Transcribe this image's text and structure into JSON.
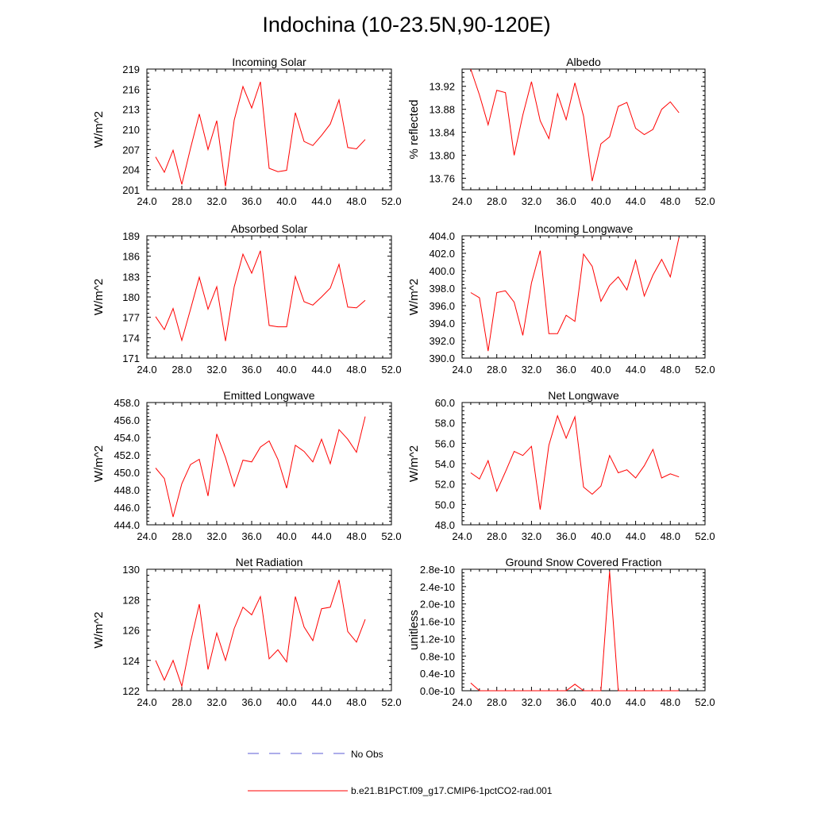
{
  "figure": {
    "title": "Indochina (10-23.5N,90-120E)",
    "legend": [
      {
        "label": "No Obs",
        "color": "#5b5bd6",
        "style": "dashed"
      },
      {
        "label": "b.e21.B1PCT.f09_g17.CMIP6-1pctCO2-rad.001",
        "color": "#ff0000",
        "style": "solid"
      }
    ]
  },
  "chart_data": [
    {
      "type": "line",
      "title": "Incoming Solar",
      "ylabel": "W/m^2",
      "xlim": [
        24,
        52
      ],
      "ylim": [
        201,
        219
      ],
      "xticks": [
        24,
        28,
        32,
        36,
        40,
        44,
        48,
        52
      ],
      "xtick_labels": [
        "24.0",
        "28.0",
        "32.0",
        "36.0",
        "40.0",
        "44.0",
        "48.0",
        "52.0"
      ],
      "yticks": [
        201,
        204,
        207,
        210,
        213,
        216,
        219
      ],
      "ytick_labels": [
        "201",
        "204",
        "207",
        "210",
        "213",
        "216",
        "219"
      ],
      "color": "#ff0000",
      "x": [
        25,
        26,
        27,
        28,
        29,
        30,
        31,
        32,
        33,
        34,
        35,
        36,
        37,
        38,
        39,
        40,
        41,
        42,
        43,
        44,
        45,
        46,
        47,
        48,
        49
      ],
      "y": [
        205.9,
        203.6,
        206.9,
        201.8,
        207.2,
        212.3,
        207.0,
        211.3,
        201.5,
        211.4,
        216.4,
        213.2,
        217.1,
        204.2,
        203.7,
        203.9,
        212.5,
        208.2,
        207.6,
        209.1,
        210.8,
        214.4,
        207.3,
        207.1,
        208.5
      ]
    },
    {
      "type": "line",
      "title": "Albedo",
      "ylabel": "% reflected",
      "xlim": [
        24,
        52
      ],
      "ylim": [
        13.74,
        13.95
      ],
      "xticks": [
        24,
        28,
        32,
        36,
        40,
        44,
        48,
        52
      ],
      "xtick_labels": [
        "24.0",
        "28.0",
        "32.0",
        "36.0",
        "40.0",
        "44.0",
        "48.0",
        "52.0"
      ],
      "yticks": [
        13.76,
        13.8,
        13.84,
        13.88,
        13.92
      ],
      "ytick_labels": [
        "13.76",
        "13.80",
        "13.84",
        "13.88",
        "13.92"
      ],
      "color": "#ff0000",
      "x": [
        25,
        26,
        27,
        28,
        29,
        30,
        31,
        32,
        33,
        34,
        35,
        36,
        37,
        38,
        39,
        40,
        41,
        42,
        43,
        44,
        45,
        46,
        47,
        48,
        49
      ],
      "y": [
        13.95,
        13.905,
        13.853,
        13.913,
        13.909,
        13.8,
        13.87,
        13.928,
        13.86,
        13.829,
        13.907,
        13.862,
        13.926,
        13.868,
        13.755,
        13.82,
        13.832,
        13.885,
        13.892,
        13.847,
        13.836,
        13.845,
        13.88,
        13.893,
        13.874
      ]
    },
    {
      "type": "line",
      "title": "Absorbed Solar",
      "ylabel": "W/m^2",
      "xlim": [
        24,
        52
      ],
      "ylim": [
        171,
        189
      ],
      "xticks": [
        24,
        28,
        32,
        36,
        40,
        44,
        48,
        52
      ],
      "xtick_labels": [
        "24.0",
        "28.0",
        "32.0",
        "36.0",
        "40.0",
        "44.0",
        "48.0",
        "52.0"
      ],
      "yticks": [
        171,
        174,
        177,
        180,
        183,
        186,
        189
      ],
      "ytick_labels": [
        "171",
        "174",
        "177",
        "180",
        "183",
        "186",
        "189"
      ],
      "color": "#ff0000",
      "x": [
        25,
        26,
        27,
        28,
        29,
        30,
        31,
        32,
        33,
        34,
        35,
        36,
        37,
        38,
        39,
        40,
        41,
        42,
        43,
        44,
        45,
        46,
        47,
        48,
        49
      ],
      "y": [
        177.1,
        175.2,
        178.3,
        173.6,
        178.2,
        182.9,
        178.2,
        181.5,
        173.5,
        181.5,
        186.3,
        183.5,
        186.8,
        175.8,
        175.6,
        175.6,
        183.0,
        179.3,
        178.8,
        180.0,
        181.3,
        184.8,
        178.5,
        178.4,
        179.5
      ]
    },
    {
      "type": "line",
      "title": "Incoming Longwave",
      "ylabel": "W/m^2",
      "xlim": [
        24,
        52
      ],
      "ylim": [
        390,
        404
      ],
      "xticks": [
        24,
        28,
        32,
        36,
        40,
        44,
        48,
        52
      ],
      "xtick_labels": [
        "24.0",
        "28.0",
        "32.0",
        "36.0",
        "40.0",
        "44.0",
        "48.0",
        "52.0"
      ],
      "yticks": [
        390,
        392,
        394,
        396,
        398,
        400,
        402,
        404
      ],
      "ytick_labels": [
        "390.0",
        "392.0",
        "394.0",
        "396.0",
        "398.0",
        "400.0",
        "402.0",
        "404.0"
      ],
      "color": "#ff0000",
      "x": [
        25,
        26,
        27,
        28,
        29,
        30,
        31,
        32,
        33,
        34,
        35,
        36,
        37,
        38,
        39,
        40,
        41,
        42,
        43,
        44,
        45,
        46,
        47,
        48,
        49
      ],
      "y": [
        397.5,
        396.9,
        390.8,
        397.5,
        397.7,
        396.4,
        392.6,
        398.6,
        402.3,
        392.8,
        392.8,
        394.9,
        394.2,
        401.9,
        400.5,
        396.5,
        398.3,
        399.3,
        397.8,
        401.2,
        397.1,
        399.5,
        401.3,
        399.3,
        403.8
      ]
    },
    {
      "type": "line",
      "title": "Emitted Longwave",
      "ylabel": "W/m^2",
      "xlim": [
        24,
        52
      ],
      "ylim": [
        444,
        458
      ],
      "xticks": [
        24,
        28,
        32,
        36,
        40,
        44,
        48,
        52
      ],
      "xtick_labels": [
        "24.0",
        "28.0",
        "32.0",
        "36.0",
        "40.0",
        "44.0",
        "48.0",
        "52.0"
      ],
      "yticks": [
        444,
        446,
        448,
        450,
        452,
        454,
        456,
        458
      ],
      "ytick_labels": [
        "444.0",
        "446.0",
        "448.0",
        "450.0",
        "452.0",
        "454.0",
        "456.0",
        "458.0"
      ],
      "color": "#ff0000",
      "x": [
        25,
        26,
        27,
        28,
        29,
        30,
        31,
        32,
        33,
        34,
        35,
        36,
        37,
        38,
        39,
        40,
        41,
        42,
        43,
        44,
        45,
        46,
        47,
        48,
        49
      ],
      "y": [
        450.5,
        449.3,
        444.9,
        448.7,
        450.9,
        451.5,
        447.3,
        454.4,
        451.7,
        448.4,
        451.4,
        451.2,
        452.9,
        453.6,
        451.5,
        448.2,
        453.1,
        452.4,
        451.2,
        453.8,
        451.0,
        454.9,
        453.8,
        452.3,
        456.4
      ]
    },
    {
      "type": "line",
      "title": "Net Longwave",
      "ylabel": "W/m^2",
      "xlim": [
        24,
        52
      ],
      "ylim": [
        48,
        60
      ],
      "xticks": [
        24,
        28,
        32,
        36,
        40,
        44,
        48,
        52
      ],
      "xtick_labels": [
        "24.0",
        "28.0",
        "32.0",
        "36.0",
        "40.0",
        "44.0",
        "48.0",
        "52.0"
      ],
      "yticks": [
        48,
        50,
        52,
        54,
        56,
        58,
        60
      ],
      "ytick_labels": [
        "48.0",
        "50.0",
        "52.0",
        "54.0",
        "56.0",
        "58.0",
        "60.0"
      ],
      "color": "#ff0000",
      "x": [
        25,
        26,
        27,
        28,
        29,
        30,
        31,
        32,
        33,
        34,
        35,
        36,
        37,
        38,
        39,
        40,
        41,
        42,
        43,
        44,
        45,
        46,
        47,
        48,
        49
      ],
      "y": [
        53.1,
        52.5,
        54.3,
        51.3,
        53.2,
        55.2,
        54.8,
        55.7,
        49.5,
        55.8,
        58.7,
        56.5,
        58.6,
        51.7,
        51.0,
        51.8,
        54.8,
        53.1,
        53.4,
        52.6,
        53.8,
        55.4,
        52.6,
        53.0,
        52.7
      ]
    },
    {
      "type": "line",
      "title": "Net Radiation",
      "ylabel": "W/m^2",
      "xlim": [
        24,
        52
      ],
      "ylim": [
        122,
        130
      ],
      "xticks": [
        24,
        28,
        32,
        36,
        40,
        44,
        48,
        52
      ],
      "xtick_labels": [
        "24.0",
        "28.0",
        "32.0",
        "36.0",
        "40.0",
        "44.0",
        "48.0",
        "52.0"
      ],
      "yticks": [
        122,
        124,
        126,
        128,
        130
      ],
      "ytick_labels": [
        "122",
        "124",
        "126",
        "128",
        "130"
      ],
      "color": "#ff0000",
      "x": [
        25,
        26,
        27,
        28,
        29,
        30,
        31,
        32,
        33,
        34,
        35,
        36,
        37,
        38,
        39,
        40,
        41,
        42,
        43,
        44,
        45,
        46,
        47,
        48,
        49
      ],
      "y": [
        124.0,
        122.7,
        124.0,
        122.3,
        125.2,
        127.7,
        123.4,
        125.8,
        124.0,
        126.1,
        127.5,
        127.0,
        128.2,
        124.1,
        124.7,
        123.9,
        128.2,
        126.2,
        125.3,
        127.4,
        127.5,
        129.3,
        125.9,
        125.2,
        126.7
      ]
    },
    {
      "type": "line",
      "title": "Ground Snow Covered Fraction",
      "ylabel": "unitless",
      "xlim": [
        24,
        52
      ],
      "ylim": [
        0,
        2.8e-10
      ],
      "xticks": [
        24,
        28,
        32,
        36,
        40,
        44,
        48,
        52
      ],
      "xtick_labels": [
        "24.0",
        "28.0",
        "32.0",
        "36.0",
        "40.0",
        "44.0",
        "48.0",
        "52.0"
      ],
      "yticks": [
        0,
        4e-11,
        8e-11,
        1.2e-10,
        1.6e-10,
        2e-10,
        2.4e-10,
        2.8e-10
      ],
      "ytick_labels": [
        "0.0e-10",
        "0.4e-10",
        "0.8e-10",
        "1.2e-10",
        "1.6e-10",
        "2.0e-10",
        "2.4e-10",
        "2.8e-10"
      ],
      "color": "#ff0000",
      "x": [
        25,
        26,
        27,
        28,
        29,
        30,
        31,
        32,
        33,
        34,
        35,
        36,
        37,
        38,
        39,
        40,
        41,
        42,
        43,
        44,
        45,
        46,
        47,
        48,
        49
      ],
      "y": [
        1.8e-11,
        0,
        0,
        0,
        0,
        0,
        0,
        0,
        0,
        0,
        0,
        0,
        1.5e-11,
        0,
        0,
        0,
        2.75e-10,
        0,
        0,
        0,
        0,
        0,
        0,
        0,
        0
      ]
    }
  ]
}
